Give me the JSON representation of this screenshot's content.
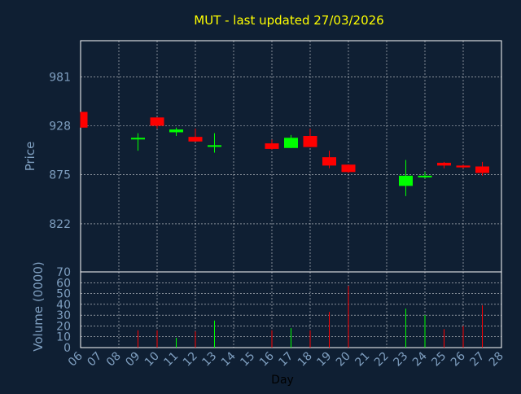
{
  "title": "MUT - last updated 27/03/2026",
  "colors": {
    "background": "#0f1f33",
    "title": "#ffff00",
    "axis_text": "#7f9fc0",
    "frame": "#ffffff",
    "grid": "#ffffff",
    "up": "#00ff00",
    "down": "#ff0000"
  },
  "chart_data": [
    {
      "type": "candlestick",
      "ylabel": "Price",
      "ylim": [
        770,
        1020
      ],
      "yticks": [
        822,
        875,
        928,
        981
      ],
      "grid": true,
      "x_categories": [
        "06",
        "07",
        "08",
        "09",
        "10",
        "11",
        "12",
        "13",
        "14",
        "15",
        "16",
        "17",
        "18",
        "19",
        "20",
        "21",
        "22",
        "23",
        "24",
        "25",
        "26",
        "27",
        "28"
      ],
      "candles": [
        {
          "day": "06",
          "open": 943,
          "high": 943,
          "low": 926,
          "close": 926
        },
        {
          "day": "09",
          "open": 915,
          "high": 920,
          "low": 901,
          "close": 915
        },
        {
          "day": "10",
          "open": 937,
          "high": 937,
          "low": 925,
          "close": 928
        },
        {
          "day": "11",
          "open": 921,
          "high": 926,
          "low": 917,
          "close": 924
        },
        {
          "day": "12",
          "open": 916,
          "high": 925,
          "low": 911,
          "close": 911
        },
        {
          "day": "13",
          "open": 906,
          "high": 920,
          "low": 899,
          "close": 907
        },
        {
          "day": "16",
          "open": 909,
          "high": 913,
          "low": 902,
          "close": 903
        },
        {
          "day": "17",
          "open": 904,
          "high": 918,
          "low": 904,
          "close": 915
        },
        {
          "day": "18",
          "open": 917,
          "high": 925,
          "low": 905,
          "close": 905
        },
        {
          "day": "19",
          "open": 894,
          "high": 901,
          "low": 882,
          "close": 885
        },
        {
          "day": "20",
          "open": 886,
          "high": 886,
          "low": 877,
          "close": 878
        },
        {
          "day": "23",
          "open": 863,
          "high": 891,
          "low": 852,
          "close": 874
        },
        {
          "day": "24",
          "open": 873,
          "high": 878,
          "low": 871,
          "close": 874
        },
        {
          "day": "25",
          "open": 888,
          "high": 889,
          "low": 882,
          "close": 885
        },
        {
          "day": "26",
          "open": 885,
          "high": 886,
          "low": 882,
          "close": 883
        },
        {
          "day": "27",
          "open": 884,
          "high": 889,
          "low": 874,
          "close": 877
        }
      ]
    },
    {
      "type": "bar",
      "ylabel": "Volume (0000)",
      "xlabel": "Day",
      "ylim": [
        0,
        70
      ],
      "yticks": [
        0,
        10,
        20,
        30,
        40,
        50,
        60,
        70
      ],
      "grid": true,
      "x_categories": [
        "06",
        "07",
        "08",
        "09",
        "10",
        "11",
        "12",
        "13",
        "14",
        "15",
        "16",
        "17",
        "18",
        "19",
        "20",
        "21",
        "22",
        "23",
        "24",
        "25",
        "26",
        "27",
        "28"
      ],
      "bars": [
        {
          "day": "09",
          "value": 16,
          "direction": "down"
        },
        {
          "day": "10",
          "value": 16,
          "direction": "down"
        },
        {
          "day": "11",
          "value": 9,
          "direction": "up"
        },
        {
          "day": "12",
          "value": 15,
          "direction": "down"
        },
        {
          "day": "13",
          "value": 25,
          "direction": "up"
        },
        {
          "day": "16",
          "value": 16,
          "direction": "down"
        },
        {
          "day": "17",
          "value": 18,
          "direction": "up"
        },
        {
          "day": "18",
          "value": 16,
          "direction": "down"
        },
        {
          "day": "19",
          "value": 33,
          "direction": "down"
        },
        {
          "day": "20",
          "value": 57,
          "direction": "down"
        },
        {
          "day": "23",
          "value": 36,
          "direction": "up"
        },
        {
          "day": "24",
          "value": 30,
          "direction": "up"
        },
        {
          "day": "25",
          "value": 17,
          "direction": "down"
        },
        {
          "day": "26",
          "value": 20,
          "direction": "down"
        },
        {
          "day": "27",
          "value": 39,
          "direction": "down"
        }
      ]
    }
  ]
}
